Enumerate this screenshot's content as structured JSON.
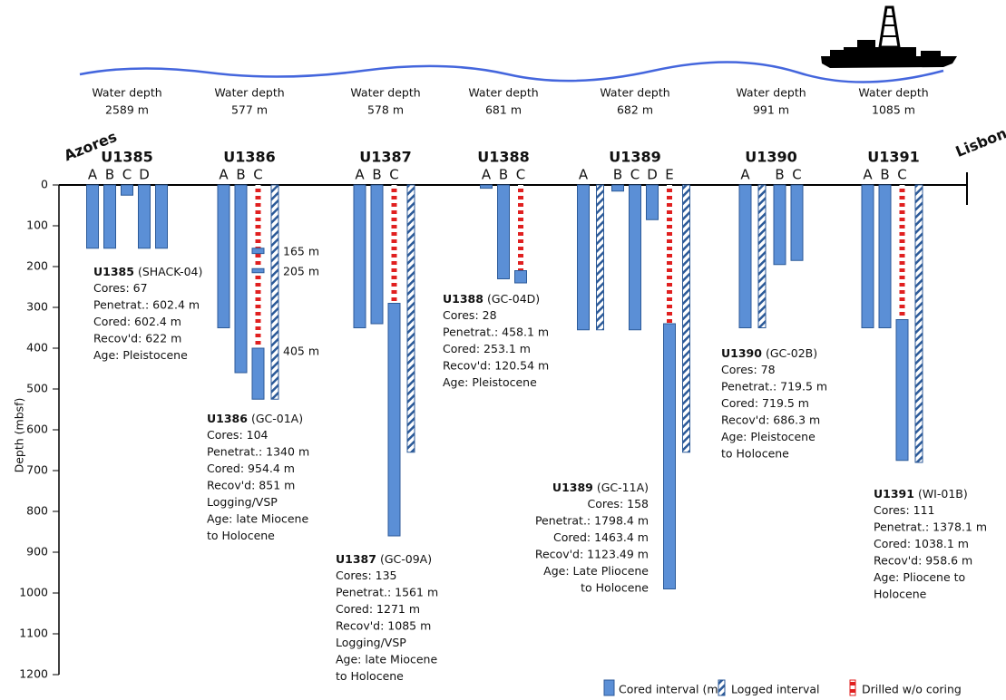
{
  "chart_data": {
    "type": "borehole",
    "y_label": "Depth (mbsf)",
    "ylim": [
      0,
      1200
    ],
    "yticks": [
      0,
      100,
      200,
      300,
      400,
      500,
      600,
      700,
      800,
      900,
      1000,
      1100,
      1200
    ],
    "left_label": "Azores",
    "right_label": "Lisbon",
    "water_depth_label": "Water depth",
    "colors": {
      "cored": "#5b8fd6",
      "cored_edge": "#2c5a98",
      "logged": "#2c5a98",
      "drilled": "#e02020"
    },
    "legend": {
      "cored": "Cored interval (m)",
      "logged": "Logged  interval",
      "drilled": "Drilled w/o coring"
    },
    "sites": [
      {
        "name": "U1385",
        "water_depth": "2589 m",
        "alias": "(SHACK-04)",
        "info": [
          "Cores: 67",
          "Penetrat.: 602.4 m",
          "Cored: 602.4 m",
          "Recov'd: 622 m",
          "Age: Pleistocene"
        ],
        "holes": [
          {
            "name": "A",
            "cored": [
              [
                0,
                155
              ]
            ]
          },
          {
            "name": "B",
            "cored": [
              [
                0,
                155
              ]
            ]
          },
          {
            "name": "C",
            "cored": [
              [
                0,
                25
              ]
            ]
          },
          {
            "name": "D",
            "cored": [
              [
                0,
                155
              ]
            ]
          },
          {
            "name": null,
            "cored": [
              [
                0,
                155
              ]
            ]
          }
        ]
      },
      {
        "name": "U1386",
        "water_depth": "577 m",
        "alias": "(GC-01A)",
        "info": [
          "Cores: 104",
          "Penetrat.: 1340 m",
          "Cored: 954.4 m",
          "Recov'd: 851 m",
          "Logging/VSP",
          "Age: late Miocene",
          "to Holocene"
        ],
        "annotations": [
          "165 m",
          "205 m",
          "405 m"
        ],
        "holes": [
          {
            "name": "A",
            "cored": [
              [
                0,
                350
              ]
            ]
          },
          {
            "name": "B",
            "cored": [
              [
                0,
                460
              ]
            ]
          },
          {
            "name": "C",
            "drilled": [
              [
                0,
                400
              ]
            ],
            "cored": [
              [
                155,
                168
              ],
              [
                205,
                215
              ],
              [
                400,
                525
              ]
            ],
            "logged": [
              [
                0,
                525
              ]
            ]
          }
        ]
      },
      {
        "name": "U1387",
        "water_depth": "578 m",
        "alias": "(GC-09A)",
        "info": [
          "Cores: 135",
          "Penetrat.: 1561 m",
          "Cored: 1271 m",
          "Recov'd: 1085 m",
          "Logging/VSP",
          "Age: late Miocene",
          "to Holocene"
        ],
        "holes": [
          {
            "name": "A",
            "cored": [
              [
                0,
                350
              ]
            ]
          },
          {
            "name": "B",
            "cored": [
              [
                0,
                340
              ]
            ]
          },
          {
            "name": "C",
            "drilled": [
              [
                0,
                290
              ]
            ],
            "cored": [
              [
                290,
                860
              ]
            ],
            "logged": [
              [
                0,
                655
              ]
            ]
          }
        ]
      },
      {
        "name": "U1388",
        "water_depth": "681 m",
        "alias": "(GC-04D)",
        "info": [
          "Cores: 28",
          "Penetrat.: 458.1 m",
          "Cored: 253.1 m",
          "Recov'd: 120.54 m",
          "Age: Pleistocene"
        ],
        "holes": [
          {
            "name": "A",
            "cored": [
              [
                0,
                8
              ]
            ]
          },
          {
            "name": "B",
            "cored": [
              [
                0,
                230
              ]
            ]
          },
          {
            "name": "C",
            "drilled": [
              [
                0,
                210
              ]
            ],
            "cored": [
              [
                210,
                240
              ]
            ]
          }
        ]
      },
      {
        "name": "U1389",
        "water_depth": "682 m",
        "alias": "(GC-11A)",
        "info": [
          "Cores: 158",
          "Penetrat.: 1798.4 m",
          "Cored: 1463.4 m",
          "Recov'd: 1123.49 m",
          "Age: Late Pliocene",
          "to Holocene"
        ],
        "holes": [
          {
            "name": "A",
            "cored": [
              [
                0,
                355
              ]
            ],
            "logged": [
              [
                0,
                355
              ]
            ]
          },
          {
            "name": "B",
            "cored": [
              [
                0,
                15
              ]
            ]
          },
          {
            "name": "C",
            "cored": [
              [
                0,
                355
              ]
            ]
          },
          {
            "name": "D",
            "cored": [
              [
                0,
                85
              ]
            ]
          },
          {
            "name": "E",
            "drilled": [
              [
                0,
                340
              ]
            ],
            "cored": [
              [
                340,
                990
              ]
            ],
            "logged": [
              [
                0,
                655
              ]
            ]
          }
        ]
      },
      {
        "name": "U1390",
        "water_depth": "991 m",
        "alias": "(GC-02B)",
        "info": [
          "Cores: 78",
          "Penetrat.: 719.5 m",
          "Cored: 719.5 m",
          "Recov'd: 686.3 m",
          "Age: Pleistocene",
          "to Holocene"
        ],
        "holes": [
          {
            "name": "A",
            "cored": [
              [
                0,
                350
              ]
            ],
            "logged": [
              [
                0,
                350
              ]
            ]
          },
          {
            "name": "B",
            "cored": [
              [
                0,
                195
              ]
            ]
          },
          {
            "name": "C",
            "cored": [
              [
                0,
                185
              ]
            ]
          }
        ]
      },
      {
        "name": "U1391",
        "water_depth": "1085 m",
        "alias": "(WI-01B)",
        "info": [
          "Cores: 111",
          "Penetrat.: 1378.1 m",
          "Cored: 1038.1 m",
          "Recov'd: 958.6 m",
          "Age: Pliocene to",
          "Holocene"
        ],
        "holes": [
          {
            "name": "A",
            "cored": [
              [
                0,
                350
              ]
            ]
          },
          {
            "name": "B",
            "cored": [
              [
                0,
                350
              ]
            ]
          },
          {
            "name": "C",
            "drilled": [
              [
                0,
                330
              ]
            ],
            "cored": [
              [
                330,
                675
              ]
            ],
            "logged": [
              [
                0,
                680
              ]
            ]
          }
        ]
      }
    ]
  }
}
